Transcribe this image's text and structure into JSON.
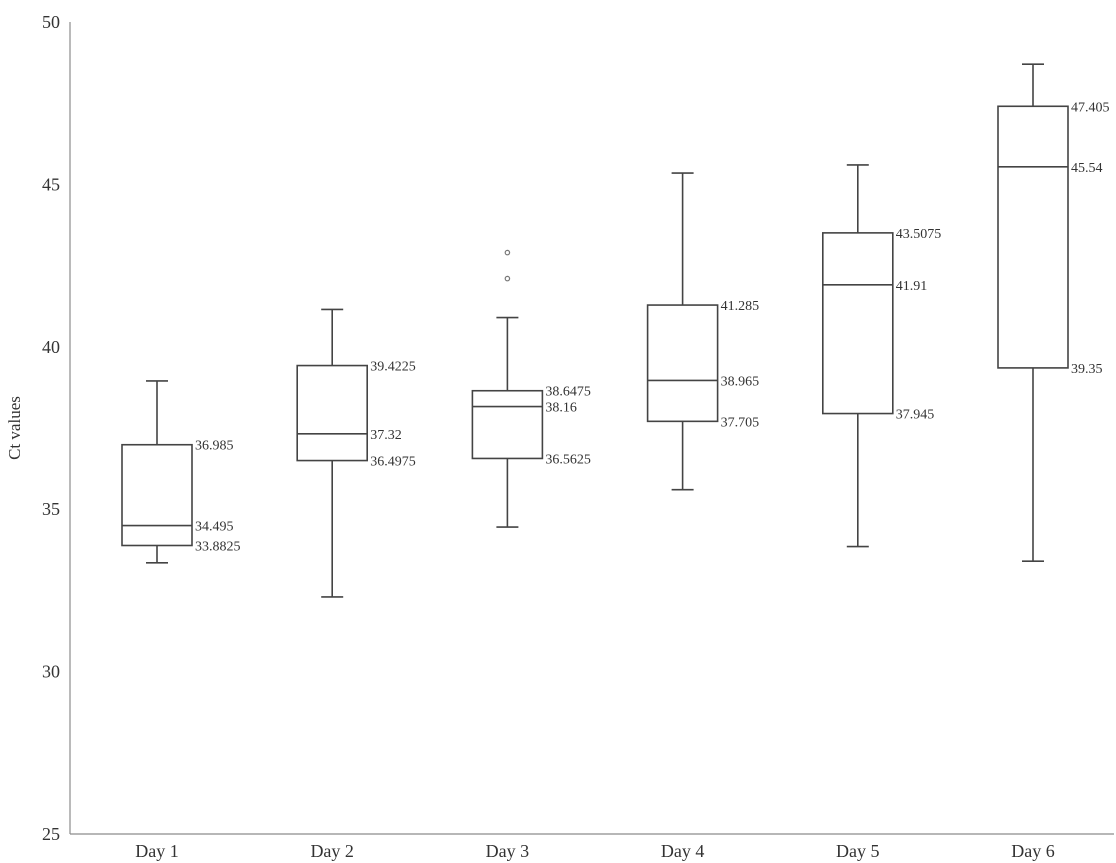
{
  "chart_data": {
    "type": "box",
    "title": "",
    "xlabel": "",
    "ylabel": "Ct values",
    "ylim": [
      25,
      50
    ],
    "yticks": [
      25,
      30,
      35,
      40,
      45,
      50
    ],
    "grid": false,
    "categories": [
      "Day 1",
      "Day 2",
      "Day 3",
      "Day 4",
      "Day 5",
      "Day 6"
    ],
    "boxes": [
      {
        "category": "Day 1",
        "whisker_low": 33.35,
        "q1": 33.8825,
        "median": 34.495,
        "q3": 36.985,
        "whisker_high": 38.95,
        "outliers": [],
        "labels": {
          "q3": "36.985",
          "median": "34.495",
          "q1": "33.8825"
        }
      },
      {
        "category": "Day 2",
        "whisker_low": 32.3,
        "q1": 36.4975,
        "median": 37.32,
        "q3": 39.4225,
        "whisker_high": 41.15,
        "outliers": [],
        "labels": {
          "q3": "39.4225",
          "median": "37.32",
          "q1": "36.4975"
        }
      },
      {
        "category": "Day 3",
        "whisker_low": 34.45,
        "q1": 36.5625,
        "median": 38.16,
        "q3": 38.6475,
        "whisker_high": 40.9,
        "outliers": [
          42.1,
          42.9
        ],
        "labels": {
          "q3": "38.6475",
          "median": "38.16",
          "q1": "36.5625"
        }
      },
      {
        "category": "Day 4",
        "whisker_low": 35.6,
        "q1": 37.705,
        "median": 38.965,
        "q3": 41.285,
        "whisker_high": 45.35,
        "outliers": [],
        "labels": {
          "q3": "41.285",
          "median": "38.965",
          "q1": "37.705"
        }
      },
      {
        "category": "Day 5",
        "whisker_low": 33.85,
        "q1": 37.945,
        "median": 41.91,
        "q3": 43.5075,
        "whisker_high": 45.6,
        "outliers": [],
        "labels": {
          "q3": "43.5075",
          "median": "41.91",
          "q1": "37.945"
        }
      },
      {
        "category": "Day 6",
        "whisker_low": 33.4,
        "q1": 39.35,
        "median": 45.54,
        "q3": 47.405,
        "whisker_high": 48.7,
        "outliers": [],
        "labels": {
          "q3": "47.405",
          "median": "45.54",
          "q1": "39.35"
        }
      }
    ]
  }
}
